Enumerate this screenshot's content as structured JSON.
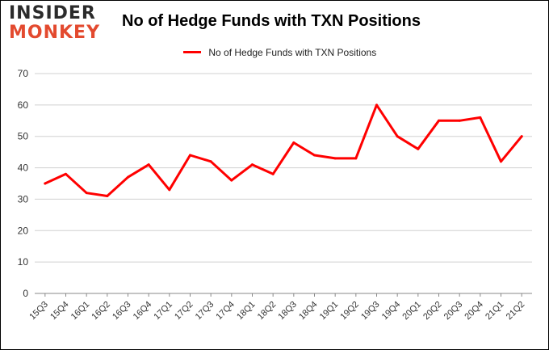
{
  "brand": {
    "line1": "INSIDER",
    "line2": "MONKEY"
  },
  "chart_data": {
    "type": "line",
    "title": "No of Hedge Funds with TXN Positions",
    "xlabel": "",
    "ylabel": "",
    "categories": [
      "15Q3",
      "15Q4",
      "16Q1",
      "16Q2",
      "16Q3",
      "16Q4",
      "17Q1",
      "17Q2",
      "17Q3",
      "17Q4",
      "18Q1",
      "18Q2",
      "18Q3",
      "18Q4",
      "19Q1",
      "19Q2",
      "19Q3",
      "19Q4",
      "20Q1",
      "20Q2",
      "20Q3",
      "20Q4",
      "21Q1",
      "21Q2"
    ],
    "series": [
      {
        "name": "No of Hedge Funds with TXN Positions",
        "color": "#ff0000",
        "values": [
          35,
          38,
          32,
          31,
          37,
          41,
          33,
          44,
          42,
          36,
          41,
          38,
          48,
          44,
          43,
          43,
          60,
          50,
          46,
          55,
          55,
          56,
          42,
          50
        ]
      }
    ],
    "ylim": [
      0,
      70
    ],
    "yticks": [
      0,
      10,
      20,
      30,
      40,
      50,
      60,
      70
    ],
    "grid": true,
    "legend": "top-center"
  }
}
